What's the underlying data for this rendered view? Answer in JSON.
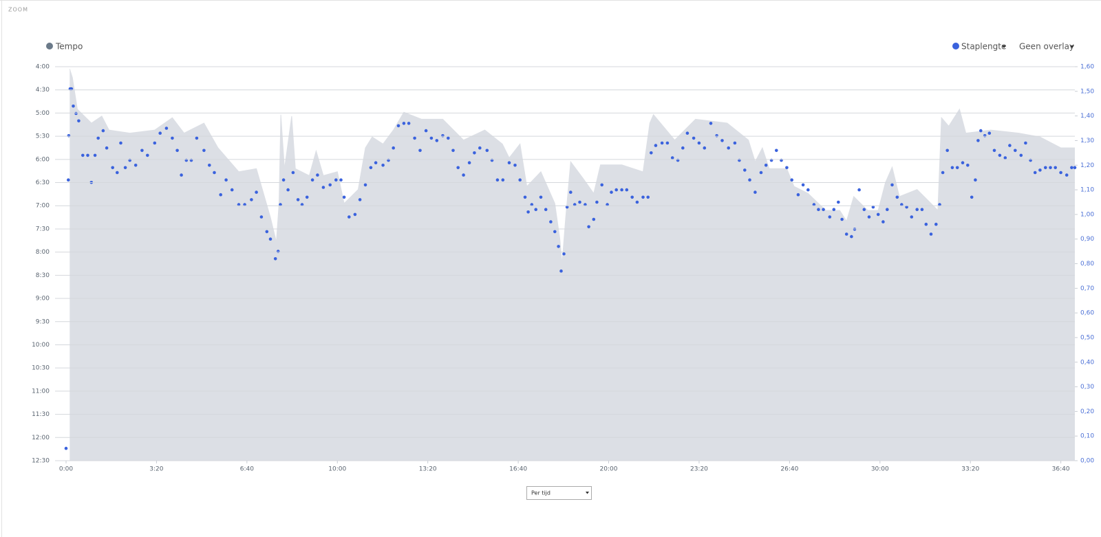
{
  "ui": {
    "zoom": "ZOOM",
    "overlay": "Geen overlay",
    "x_mode": "Per tijd"
  },
  "chart_data": {
    "type": "combo",
    "xlim": [
      0,
      2231
    ],
    "xticks": [
      {
        "value": 0,
        "label": "0:00"
      },
      {
        "value": 200,
        "label": "3:20"
      },
      {
        "value": 400,
        "label": "6:40"
      },
      {
        "value": 600,
        "label": "10:00"
      },
      {
        "value": 800,
        "label": "13:20"
      },
      {
        "value": 1000,
        "label": "16:40"
      },
      {
        "value": 1200,
        "label": "20:00"
      },
      {
        "value": 1400,
        "label": "23:20"
      },
      {
        "value": 1600,
        "label": "26:40"
      },
      {
        "value": 1800,
        "label": "30:00"
      },
      {
        "value": 2000,
        "label": "33:20"
      },
      {
        "value": 2200,
        "label": "36:40"
      }
    ],
    "ylim": [
      750,
      240
    ],
    "yticks": [
      {
        "value": 240,
        "label": "4:00"
      },
      {
        "value": 270,
        "label": "4:30"
      },
      {
        "value": 300,
        "label": "5:00"
      },
      {
        "value": 330,
        "label": "5:30"
      },
      {
        "value": 360,
        "label": "6:00"
      },
      {
        "value": 390,
        "label": "6:30"
      },
      {
        "value": 420,
        "label": "7:00"
      },
      {
        "value": 450,
        "label": "7:30"
      },
      {
        "value": 480,
        "label": "8:00"
      },
      {
        "value": 510,
        "label": "8:30"
      },
      {
        "value": 540,
        "label": "9:00"
      },
      {
        "value": 570,
        "label": "9:30"
      },
      {
        "value": 600,
        "label": "10:00"
      },
      {
        "value": 630,
        "label": "10:30"
      },
      {
        "value": 660,
        "label": "11:00"
      },
      {
        "value": 690,
        "label": "11:30"
      },
      {
        "value": 720,
        "label": "12:00"
      },
      {
        "value": 750,
        "label": "12:30"
      }
    ],
    "y2lim": [
      0,
      1.6
    ],
    "y2ticks": [
      {
        "value": 0,
        "label": "0,00"
      },
      {
        "value": 0.1,
        "label": "0,10"
      },
      {
        "value": 0.2,
        "label": "0,20"
      },
      {
        "value": 0.3,
        "label": "0,30"
      },
      {
        "value": 0.4,
        "label": "0,40"
      },
      {
        "value": 0.5,
        "label": "0,50"
      },
      {
        "value": 0.6,
        "label": "0,60"
      },
      {
        "value": 0.7,
        "label": "0,70"
      },
      {
        "value": 0.8,
        "label": "0,80"
      },
      {
        "value": 0.9,
        "label": "0,90"
      },
      {
        "value": 1.0,
        "label": "1,00"
      },
      {
        "value": 1.1,
        "label": "1,10"
      },
      {
        "value": 1.2,
        "label": "1,20"
      },
      {
        "value": 1.3,
        "label": "1,30"
      },
      {
        "value": 1.4,
        "label": "1,40"
      },
      {
        "value": 1.5,
        "label": "1,50"
      },
      {
        "value": 1.6,
        "label": "1,60"
      }
    ],
    "grid": true,
    "series": [
      {
        "name": "Tempo",
        "type": "area",
        "color": "#dcdfe5",
        "legend_color": "#6b7a89",
        "x": [
          8,
          14,
          25,
          56,
          79,
          95,
          141,
          196,
          235,
          261,
          305,
          336,
          382,
          421,
          452,
          465,
          471,
          475,
          483,
          499,
          507,
          538,
          553,
          569,
          600,
          615,
          646,
          662,
          677,
          701,
          724,
          747,
          786,
          833,
          879,
          926,
          965,
          980,
          1004,
          1019,
          1050,
          1081,
          1092,
          1097,
          1105,
          1116,
          1144,
          1167,
          1182,
          1229,
          1276,
          1291,
          1299,
          1346,
          1392,
          1462,
          1509,
          1524,
          1540,
          1555,
          1594,
          1610,
          1641,
          1680,
          1711,
          1726,
          1742,
          1773,
          1796,
          1812,
          1827,
          1843,
          1882,
          1913,
          1928,
          1936,
          1952,
          1976,
          1990,
          2045,
          2107,
          2154,
          2200,
          2231
        ],
        "values": [
          243,
          254,
          295,
          313,
          304,
          322,
          326,
          322,
          306,
          326,
          313,
          345,
          376,
          372,
          435,
          467,
          417,
          302,
          372,
          304,
          372,
          381,
          349,
          381,
          376,
          417,
          399,
          345,
          331,
          340,
          322,
          299,
          308,
          308,
          335,
          322,
          340,
          358,
          340,
          395,
          376,
          417,
          463,
          495,
          435,
          363,
          385,
          404,
          367,
          367,
          376,
          313,
          302,
          335,
          308,
          313,
          335,
          363,
          345,
          372,
          372,
          395,
          404,
          426,
          426,
          440,
          408,
          426,
          426,
          390,
          370,
          408,
          399,
          417,
          426,
          306,
          317,
          295,
          326,
          322,
          326,
          331,
          345,
          345
        ]
      },
      {
        "name": "Staplengte",
        "type": "scatter",
        "axis": "y2",
        "color": "#3a62dd",
        "x": [
          0,
          5,
          6,
          9,
          12,
          16,
          22,
          28,
          37,
          48,
          56,
          64,
          71,
          82,
          90,
          103,
          113,
          121,
          131,
          141,
          154,
          168,
          180,
          196,
          208,
          222,
          235,
          246,
          255,
          266,
          277,
          289,
          305,
          317,
          328,
          342,
          354,
          367,
          382,
          395,
          410,
          421,
          432,
          444,
          452,
          463,
          469,
          474,
          481,
          491,
          502,
          513,
          522,
          533,
          545,
          556,
          569,
          584,
          597,
          608,
          615,
          626,
          639,
          650,
          662,
          674,
          685,
          701,
          713,
          724,
          735,
          747,
          758,
          771,
          783,
          796,
          808,
          820,
          833,
          845,
          856,
          867,
          879,
          892,
          903,
          915,
          931,
          942,
          954,
          966,
          980,
          993,
          1004,
          1015,
          1022,
          1030,
          1039,
          1050,
          1061,
          1072,
          1081,
          1089,
          1095,
          1101,
          1108,
          1116,
          1125,
          1136,
          1148,
          1156,
          1167,
          1174,
          1185,
          1197,
          1206,
          1217,
          1229,
          1240,
          1252,
          1263,
          1276,
          1287,
          1294,
          1304,
          1318,
          1330,
          1341,
          1353,
          1364,
          1374,
          1388,
          1400,
          1412,
          1426,
          1439,
          1451,
          1465,
          1479,
          1489,
          1501,
          1512,
          1524,
          1537,
          1548,
          1560,
          1571,
          1582,
          1594,
          1605,
          1619,
          1630,
          1641,
          1654,
          1664,
          1675,
          1689,
          1698,
          1708,
          1716,
          1726,
          1737,
          1744,
          1754,
          1765,
          1776,
          1785,
          1796,
          1807,
          1816,
          1827,
          1838,
          1848,
          1859,
          1870,
          1882,
          1893,
          1902,
          1913,
          1924,
          1932,
          1939,
          1949,
          1960,
          1971,
          1983,
          1994,
          2003,
          2011,
          2017,
          2023,
          2032,
          2042,
          2053,
          2065,
          2077,
          2087,
          2099,
          2112,
          2122,
          2133,
          2143,
          2154,
          2166,
          2177,
          2188,
          2200,
          2213,
          2224,
          2231
        ],
        "values": [
          0.05,
          1.14,
          1.32,
          1.51,
          1.51,
          1.44,
          1.41,
          1.38,
          1.24,
          1.24,
          1.13,
          1.24,
          1.31,
          1.34,
          1.27,
          1.19,
          1.17,
          1.29,
          1.19,
          1.22,
          1.2,
          1.26,
          1.24,
          1.29,
          1.33,
          1.35,
          1.31,
          1.26,
          1.16,
          1.22,
          1.22,
          1.31,
          1.26,
          1.2,
          1.17,
          1.08,
          1.14,
          1.1,
          1.04,
          1.04,
          1.06,
          1.09,
          0.99,
          0.93,
          0.9,
          0.82,
          0.85,
          1.04,
          1.14,
          1.1,
          1.17,
          1.06,
          1.04,
          1.07,
          1.14,
          1.16,
          1.11,
          1.12,
          1.14,
          1.14,
          1.07,
          0.99,
          1.0,
          1.06,
          1.12,
          1.19,
          1.21,
          1.2,
          1.22,
          1.27,
          1.36,
          1.37,
          1.37,
          1.31,
          1.26,
          1.34,
          1.31,
          1.3,
          1.32,
          1.31,
          1.26,
          1.19,
          1.16,
          1.21,
          1.25,
          1.27,
          1.26,
          1.22,
          1.14,
          1.14,
          1.21,
          1.2,
          1.14,
          1.07,
          1.01,
          1.04,
          1.02,
          1.07,
          1.02,
          0.97,
          0.93,
          0.87,
          0.77,
          0.84,
          1.03,
          1.09,
          1.04,
          1.05,
          1.04,
          0.95,
          0.98,
          1.05,
          1.12,
          1.04,
          1.09,
          1.1,
          1.1,
          1.1,
          1.07,
          1.05,
          1.07,
          1.07,
          1.25,
          1.28,
          1.29,
          1.29,
          1.23,
          1.22,
          1.27,
          1.33,
          1.31,
          1.29,
          1.27,
          1.37,
          1.32,
          1.3,
          1.27,
          1.29,
          1.22,
          1.18,
          1.14,
          1.09,
          1.17,
          1.2,
          1.22,
          1.26,
          1.22,
          1.19,
          1.14,
          1.08,
          1.12,
          1.1,
          1.04,
          1.02,
          1.02,
          0.99,
          1.02,
          1.05,
          0.98,
          0.92,
          0.91,
          0.94,
          1.1,
          1.02,
          0.99,
          1.03,
          1.0,
          0.97,
          1.02,
          1.12,
          1.07,
          1.04,
          1.03,
          0.99,
          1.02,
          1.02,
          0.96,
          0.92,
          0.96,
          1.04,
          1.17,
          1.26,
          1.19,
          1.19,
          1.21,
          1.2,
          1.07,
          1.14,
          1.3,
          1.34,
          1.32,
          1.33,
          1.26,
          1.24,
          1.23,
          1.28,
          1.26,
          1.24,
          1.29,
          1.22,
          1.17,
          1.18,
          1.19,
          1.19,
          1.19,
          1.17,
          1.16,
          1.19,
          1.19
        ]
      }
    ]
  }
}
